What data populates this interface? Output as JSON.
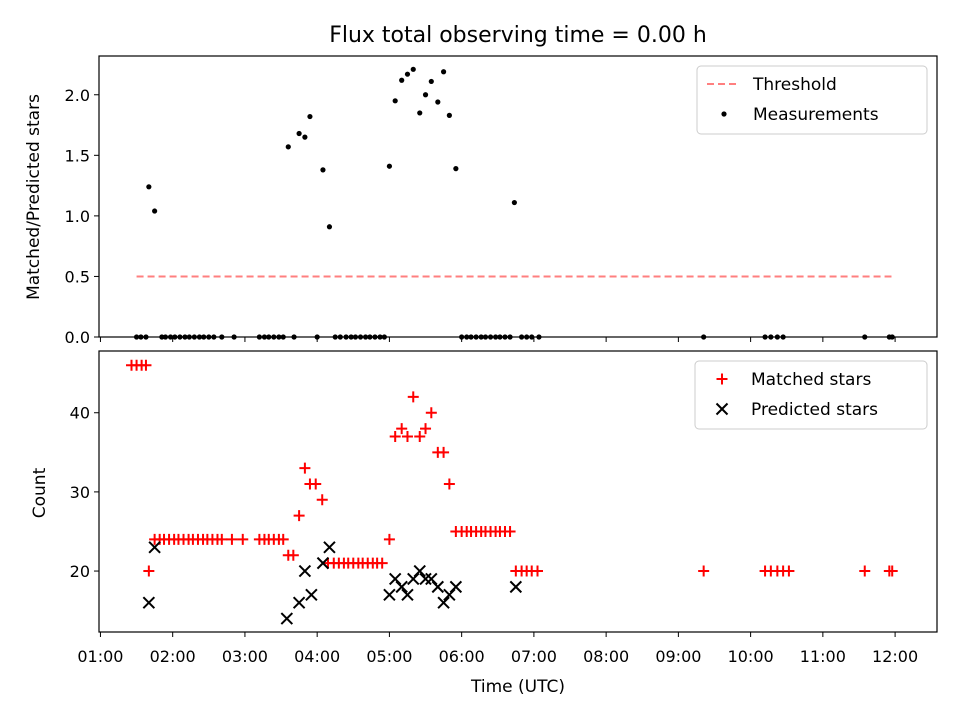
{
  "figure": {
    "title": "Flux total observing time = 0.00 h",
    "xlabel": "Time (UTC)",
    "x_ticks": [
      "01:00",
      "02:00",
      "03:00",
      "04:00",
      "05:00",
      "06:00",
      "07:00",
      "08:00",
      "09:00",
      "10:00",
      "11:00",
      "12:00"
    ]
  },
  "chart_data": [
    {
      "type": "scatter",
      "ylabel": "Matched/Predicted stars",
      "xlim": [
        0.98,
        12.58
      ],
      "ylim": [
        0.0,
        2.32
      ],
      "x_unit": "hours UTC",
      "y_ticks": [
        "0.0",
        "0.5",
        "1.0",
        "1.5",
        "2.0"
      ],
      "legend_position": "upper right",
      "threshold": {
        "name": "Threshold",
        "y": 0.5,
        "x_range": [
          1.5,
          11.95
        ],
        "color": "#ff7f7f",
        "style": "dashed"
      },
      "series": [
        {
          "name": "Measurements",
          "marker": "dot",
          "color": "#000000",
          "points": [
            [
              1.5,
              0
            ],
            [
              1.56,
              0
            ],
            [
              1.63,
              0
            ],
            [
              1.67,
              1.24
            ],
            [
              1.75,
              1.04
            ],
            [
              1.85,
              0
            ],
            [
              1.9,
              0
            ],
            [
              1.97,
              0
            ],
            [
              2.03,
              0
            ],
            [
              2.1,
              0
            ],
            [
              2.17,
              0
            ],
            [
              2.23,
              0
            ],
            [
              2.3,
              0
            ],
            [
              2.37,
              0
            ],
            [
              2.43,
              0
            ],
            [
              2.5,
              0
            ],
            [
              2.57,
              0
            ],
            [
              2.68,
              0
            ],
            [
              2.85,
              0
            ],
            [
              3.2,
              0
            ],
            [
              3.27,
              0
            ],
            [
              3.33,
              0
            ],
            [
              3.4,
              0
            ],
            [
              3.47,
              0
            ],
            [
              3.53,
              0
            ],
            [
              3.6,
              1.57
            ],
            [
              3.68,
              0
            ],
            [
              3.75,
              1.68
            ],
            [
              3.83,
              1.65
            ],
            [
              3.9,
              1.82
            ],
            [
              4.0,
              0
            ],
            [
              4.08,
              1.38
            ],
            [
              4.17,
              0.91
            ],
            [
              4.25,
              0
            ],
            [
              4.32,
              0
            ],
            [
              4.4,
              0
            ],
            [
              4.47,
              0
            ],
            [
              4.53,
              0
            ],
            [
              4.6,
              0
            ],
            [
              4.67,
              0
            ],
            [
              4.73,
              0
            ],
            [
              4.8,
              0
            ],
            [
              4.87,
              0
            ],
            [
              4.93,
              0
            ],
            [
              5.0,
              1.41
            ],
            [
              5.08,
              1.95
            ],
            [
              5.17,
              2.12
            ],
            [
              5.25,
              2.17
            ],
            [
              5.33,
              2.21
            ],
            [
              5.42,
              1.85
            ],
            [
              5.5,
              2.0
            ],
            [
              5.58,
              2.11
            ],
            [
              5.67,
              1.94
            ],
            [
              5.75,
              2.19
            ],
            [
              5.83,
              1.83
            ],
            [
              5.92,
              1.39
            ],
            [
              6.0,
              0
            ],
            [
              6.07,
              0
            ],
            [
              6.13,
              0
            ],
            [
              6.2,
              0
            ],
            [
              6.27,
              0
            ],
            [
              6.33,
              0
            ],
            [
              6.4,
              0
            ],
            [
              6.47,
              0
            ],
            [
              6.53,
              0
            ],
            [
              6.6,
              0
            ],
            [
              6.67,
              0
            ],
            [
              6.73,
              1.11
            ],
            [
              6.83,
              0
            ],
            [
              6.9,
              0
            ],
            [
              6.97,
              0
            ],
            [
              7.07,
              0
            ],
            [
              9.35,
              0
            ],
            [
              10.2,
              0
            ],
            [
              10.28,
              0
            ],
            [
              10.37,
              0
            ],
            [
              10.45,
              0
            ],
            [
              11.58,
              0
            ],
            [
              11.92,
              0
            ],
            [
              11.96,
              0
            ]
          ]
        }
      ]
    },
    {
      "type": "scatter",
      "ylabel": "Count",
      "xlim": [
        0.98,
        12.58
      ],
      "ylim": [
        12.3,
        47.8
      ],
      "x_unit": "hours UTC",
      "y_ticks": [
        "20",
        "30",
        "40"
      ],
      "legend_position": "upper right",
      "series": [
        {
          "name": "Matched stars",
          "marker": "plus",
          "color": "#ff0000",
          "points": [
            [
              1.43,
              46
            ],
            [
              1.5,
              46
            ],
            [
              1.57,
              46
            ],
            [
              1.63,
              46
            ],
            [
              1.67,
              20
            ],
            [
              1.75,
              24
            ],
            [
              1.82,
              24
            ],
            [
              1.88,
              24
            ],
            [
              1.95,
              24
            ],
            [
              2.02,
              24
            ],
            [
              2.08,
              24
            ],
            [
              2.15,
              24
            ],
            [
              2.22,
              24
            ],
            [
              2.28,
              24
            ],
            [
              2.35,
              24
            ],
            [
              2.42,
              24
            ],
            [
              2.48,
              24
            ],
            [
              2.55,
              24
            ],
            [
              2.62,
              24
            ],
            [
              2.68,
              24
            ],
            [
              2.82,
              24
            ],
            [
              2.97,
              24
            ],
            [
              3.2,
              24
            ],
            [
              3.27,
              24
            ],
            [
              3.33,
              24
            ],
            [
              3.4,
              24
            ],
            [
              3.47,
              24
            ],
            [
              3.53,
              24
            ],
            [
              3.6,
              22
            ],
            [
              3.67,
              22
            ],
            [
              3.75,
              27
            ],
            [
              3.83,
              33
            ],
            [
              3.9,
              31
            ],
            [
              3.98,
              31
            ],
            [
              4.07,
              29
            ],
            [
              4.15,
              21
            ],
            [
              4.23,
              21
            ],
            [
              4.3,
              21
            ],
            [
              4.37,
              21
            ],
            [
              4.43,
              21
            ],
            [
              4.5,
              21
            ],
            [
              4.57,
              21
            ],
            [
              4.63,
              21
            ],
            [
              4.7,
              21
            ],
            [
              4.77,
              21
            ],
            [
              4.83,
              21
            ],
            [
              4.9,
              21
            ],
            [
              5.0,
              24
            ],
            [
              5.08,
              37
            ],
            [
              5.17,
              38
            ],
            [
              5.25,
              37
            ],
            [
              5.33,
              42
            ],
            [
              5.42,
              37
            ],
            [
              5.5,
              38
            ],
            [
              5.58,
              40
            ],
            [
              5.67,
              35
            ],
            [
              5.75,
              35
            ],
            [
              5.83,
              31
            ],
            [
              5.92,
              25
            ],
            [
              6.0,
              25
            ],
            [
              6.07,
              25
            ],
            [
              6.13,
              25
            ],
            [
              6.2,
              25
            ],
            [
              6.27,
              25
            ],
            [
              6.33,
              25
            ],
            [
              6.4,
              25
            ],
            [
              6.47,
              25
            ],
            [
              6.53,
              25
            ],
            [
              6.6,
              25
            ],
            [
              6.67,
              25
            ],
            [
              6.75,
              20
            ],
            [
              6.83,
              20
            ],
            [
              6.9,
              20
            ],
            [
              6.97,
              20
            ],
            [
              7.05,
              20
            ],
            [
              9.35,
              20
            ],
            [
              10.2,
              20
            ],
            [
              10.28,
              20
            ],
            [
              10.37,
              20
            ],
            [
              10.45,
              20
            ],
            [
              10.53,
              20
            ],
            [
              11.58,
              20
            ],
            [
              11.92,
              20
            ],
            [
              11.96,
              20
            ]
          ]
        },
        {
          "name": "Predicted stars",
          "marker": "x",
          "color": "#000000",
          "points": [
            [
              1.67,
              16
            ],
            [
              1.75,
              23
            ],
            [
              3.58,
              14
            ],
            [
              3.75,
              16
            ],
            [
              3.83,
              20
            ],
            [
              3.92,
              17
            ],
            [
              4.08,
              21
            ],
            [
              4.17,
              23
            ],
            [
              5.0,
              17
            ],
            [
              5.08,
              19
            ],
            [
              5.17,
              18
            ],
            [
              5.25,
              17
            ],
            [
              5.33,
              19
            ],
            [
              5.42,
              20
            ],
            [
              5.5,
              19
            ],
            [
              5.58,
              19
            ],
            [
              5.67,
              18
            ],
            [
              5.75,
              16
            ],
            [
              5.83,
              17
            ],
            [
              5.92,
              18
            ],
            [
              6.75,
              18
            ]
          ]
        }
      ]
    }
  ]
}
